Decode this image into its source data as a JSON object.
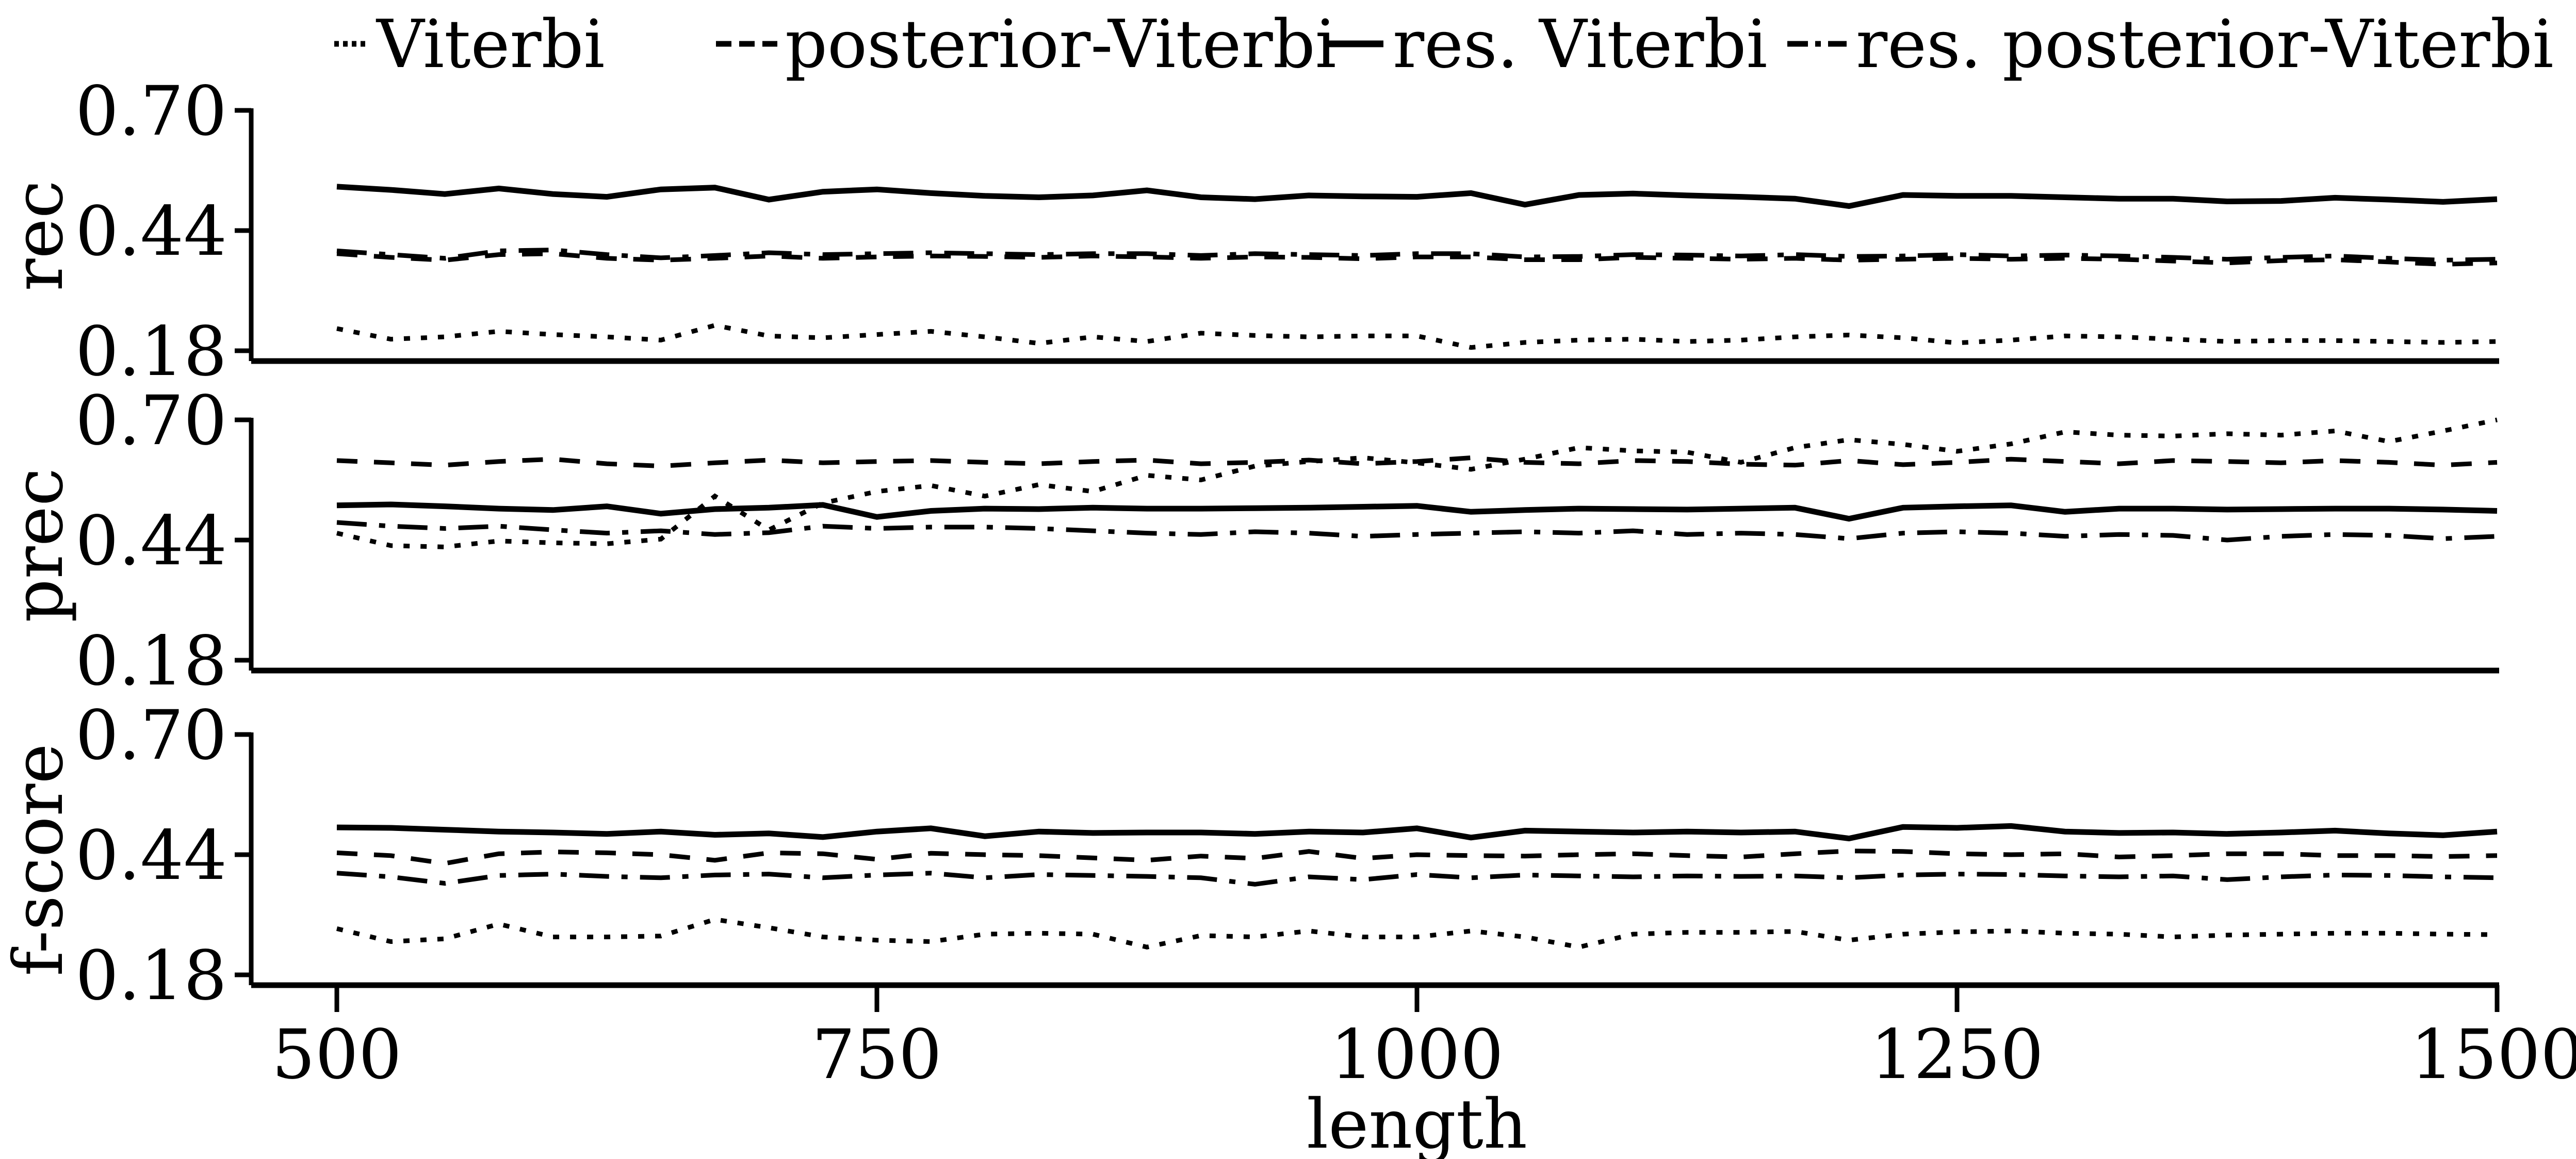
{
  "figure": {
    "background": "#ffffff",
    "ink_color": "#000000"
  },
  "legend": {
    "items": [
      {
        "label": "Viterbi",
        "style": "dotted"
      },
      {
        "label": "posterior-Viterbi",
        "style": "dashed"
      },
      {
        "label": "res. Viterbi",
        "style": "solid"
      },
      {
        "label": "res. posterior-Viterbi",
        "style": "dashdot"
      }
    ]
  },
  "axes": {
    "x_label": "length",
    "x_ticks": [
      "500",
      "750",
      "1000",
      "1250",
      "1500"
    ],
    "x_tick_values": [
      500,
      750,
      1000,
      1250,
      1500
    ],
    "y_tick_labels": [
      "0.70",
      "0.44",
      "0.18"
    ],
    "y_tick_values": [
      0.7,
      0.44,
      0.18
    ],
    "xlim": [
      500,
      1500
    ],
    "ylim": [
      0.18,
      0.7
    ],
    "grid": false,
    "legend_position": "top"
  },
  "chart_data": [
    {
      "type": "line",
      "ylabel": "rec",
      "x": [
        500,
        525,
        550,
        575,
        600,
        625,
        650,
        675,
        700,
        725,
        750,
        775,
        800,
        825,
        850,
        875,
        900,
        925,
        950,
        975,
        1000,
        1025,
        1050,
        1075,
        1100,
        1125,
        1150,
        1175,
        1200,
        1225,
        1250,
        1275,
        1300,
        1325,
        1350,
        1375,
        1400,
        1425,
        1450,
        1475,
        1500
      ],
      "series": [
        {
          "name": "Viterbi",
          "style": "dotted",
          "values": [
            0.228,
            0.205,
            0.21,
            0.222,
            0.215,
            0.21,
            0.203,
            0.235,
            0.212,
            0.208,
            0.215,
            0.222,
            0.21,
            0.196,
            0.21,
            0.2,
            0.218,
            0.213,
            0.21,
            0.212,
            0.212,
            0.187,
            0.198,
            0.203,
            0.205,
            0.2,
            0.203,
            0.21,
            0.214,
            0.208,
            0.197,
            0.203,
            0.212,
            0.21,
            0.205,
            0.2,
            0.202,
            0.202,
            0.2,
            0.198,
            0.2
          ]
        },
        {
          "name": "posterior-Viterbi",
          "style": "dashed",
          "values": [
            0.39,
            0.382,
            0.376,
            0.388,
            0.39,
            0.38,
            0.376,
            0.38,
            0.385,
            0.38,
            0.383,
            0.385,
            0.384,
            0.382,
            0.385,
            0.383,
            0.38,
            0.383,
            0.382,
            0.379,
            0.383,
            0.383,
            0.377,
            0.377,
            0.382,
            0.38,
            0.378,
            0.38,
            0.376,
            0.378,
            0.38,
            0.378,
            0.38,
            0.378,
            0.374,
            0.37,
            0.375,
            0.377,
            0.372,
            0.367,
            0.37
          ]
        },
        {
          "name": "res. Viterbi",
          "style": "solid",
          "values": [
            0.535,
            0.528,
            0.519,
            0.531,
            0.519,
            0.513,
            0.529,
            0.533,
            0.507,
            0.524,
            0.529,
            0.521,
            0.515,
            0.512,
            0.516,
            0.527,
            0.512,
            0.508,
            0.516,
            0.514,
            0.513,
            0.521,
            0.496,
            0.517,
            0.52,
            0.516,
            0.513,
            0.509,
            0.493,
            0.517,
            0.515,
            0.515,
            0.512,
            0.509,
            0.509,
            0.503,
            0.504,
            0.511,
            0.507,
            0.502,
            0.508
          ]
        },
        {
          "name": "res. posterior-Viterbi",
          "style": "dashdot",
          "values": [
            0.396,
            0.388,
            0.38,
            0.396,
            0.398,
            0.388,
            0.381,
            0.386,
            0.392,
            0.388,
            0.39,
            0.392,
            0.39,
            0.388,
            0.39,
            0.39,
            0.386,
            0.39,
            0.388,
            0.386,
            0.39,
            0.39,
            0.383,
            0.384,
            0.388,
            0.387,
            0.385,
            0.388,
            0.384,
            0.385,
            0.388,
            0.385,
            0.387,
            0.385,
            0.382,
            0.378,
            0.382,
            0.385,
            0.38,
            0.376,
            0.378
          ]
        }
      ]
    },
    {
      "type": "line",
      "ylabel": "prec",
      "x": [
        500,
        525,
        550,
        575,
        600,
        625,
        650,
        675,
        700,
        725,
        750,
        775,
        800,
        825,
        850,
        875,
        900,
        925,
        950,
        975,
        1000,
        1025,
        1050,
        1075,
        1100,
        1125,
        1150,
        1175,
        1200,
        1225,
        1250,
        1275,
        1300,
        1325,
        1350,
        1375,
        1400,
        1425,
        1450,
        1475,
        1500
      ],
      "series": [
        {
          "name": "Viterbi",
          "style": "dotted",
          "values": [
            0.455,
            0.428,
            0.425,
            0.438,
            0.434,
            0.432,
            0.442,
            0.535,
            0.462,
            0.52,
            0.545,
            0.558,
            0.535,
            0.56,
            0.545,
            0.58,
            0.57,
            0.6,
            0.61,
            0.618,
            0.607,
            0.593,
            0.615,
            0.64,
            0.633,
            0.63,
            0.608,
            0.64,
            0.657,
            0.647,
            0.632,
            0.648,
            0.674,
            0.667,
            0.665,
            0.67,
            0.667,
            0.676,
            0.653,
            0.676,
            0.7
          ]
        },
        {
          "name": "posterior-Viterbi",
          "style": "dashed",
          "values": [
            0.612,
            0.607,
            0.602,
            0.61,
            0.615,
            0.605,
            0.6,
            0.607,
            0.613,
            0.607,
            0.61,
            0.612,
            0.608,
            0.605,
            0.61,
            0.613,
            0.605,
            0.608,
            0.613,
            0.605,
            0.61,
            0.618,
            0.608,
            0.605,
            0.612,
            0.61,
            0.604,
            0.602,
            0.612,
            0.603,
            0.608,
            0.615,
            0.61,
            0.605,
            0.612,
            0.61,
            0.607,
            0.612,
            0.608,
            0.602,
            0.608
          ]
        },
        {
          "name": "res. Viterbi",
          "style": "solid",
          "values": [
            0.515,
            0.517,
            0.513,
            0.508,
            0.505,
            0.513,
            0.497,
            0.507,
            0.51,
            0.516,
            0.49,
            0.503,
            0.508,
            0.507,
            0.51,
            0.508,
            0.508,
            0.509,
            0.51,
            0.512,
            0.514,
            0.501,
            0.505,
            0.508,
            0.507,
            0.506,
            0.508,
            0.51,
            0.486,
            0.51,
            0.513,
            0.515,
            0.501,
            0.508,
            0.508,
            0.506,
            0.507,
            0.508,
            0.508,
            0.506,
            0.503
          ]
        },
        {
          "name": "res. posterior-Viterbi",
          "style": "dashdot",
          "values": [
            0.478,
            0.47,
            0.465,
            0.47,
            0.462,
            0.455,
            0.46,
            0.452,
            0.456,
            0.47,
            0.465,
            0.468,
            0.468,
            0.465,
            0.46,
            0.455,
            0.452,
            0.458,
            0.455,
            0.448,
            0.452,
            0.455,
            0.458,
            0.455,
            0.46,
            0.452,
            0.455,
            0.452,
            0.443,
            0.455,
            0.458,
            0.455,
            0.448,
            0.452,
            0.45,
            0.44,
            0.448,
            0.452,
            0.45,
            0.443,
            0.448
          ]
        }
      ]
    },
    {
      "type": "line",
      "ylabel": "f-score",
      "x": [
        500,
        525,
        550,
        575,
        600,
        625,
        650,
        675,
        700,
        725,
        750,
        775,
        800,
        825,
        850,
        875,
        900,
        925,
        950,
        975,
        1000,
        1025,
        1050,
        1075,
        1100,
        1125,
        1150,
        1175,
        1200,
        1225,
        1250,
        1275,
        1300,
        1325,
        1350,
        1375,
        1400,
        1425,
        1450,
        1475,
        1500
      ],
      "series": [
        {
          "name": "Viterbi",
          "style": "dotted",
          "values": [
            0.28,
            0.252,
            0.258,
            0.29,
            0.262,
            0.262,
            0.264,
            0.3,
            0.282,
            0.262,
            0.255,
            0.252,
            0.268,
            0.27,
            0.268,
            0.24,
            0.265,
            0.262,
            0.275,
            0.262,
            0.262,
            0.275,
            0.262,
            0.24,
            0.268,
            0.272,
            0.272,
            0.274,
            0.255,
            0.268,
            0.273,
            0.275,
            0.27,
            0.268,
            0.262,
            0.266,
            0.268,
            0.27,
            0.27,
            0.268,
            0.267
          ]
        },
        {
          "name": "posterior-Viterbi",
          "style": "dashed",
          "values": [
            0.444,
            0.438,
            0.421,
            0.442,
            0.446,
            0.444,
            0.44,
            0.428,
            0.444,
            0.442,
            0.43,
            0.443,
            0.44,
            0.438,
            0.433,
            0.428,
            0.437,
            0.432,
            0.447,
            0.432,
            0.44,
            0.438,
            0.437,
            0.44,
            0.442,
            0.438,
            0.435,
            0.442,
            0.448,
            0.447,
            0.442,
            0.44,
            0.442,
            0.435,
            0.438,
            0.442,
            0.442,
            0.438,
            0.438,
            0.436,
            0.438
          ]
        },
        {
          "name": "res. Viterbi",
          "style": "solid",
          "values": [
            0.499,
            0.498,
            0.494,
            0.49,
            0.488,
            0.485,
            0.49,
            0.483,
            0.486,
            0.478,
            0.49,
            0.497,
            0.48,
            0.49,
            0.487,
            0.488,
            0.488,
            0.485,
            0.49,
            0.488,
            0.497,
            0.477,
            0.492,
            0.49,
            0.488,
            0.49,
            0.488,
            0.49,
            0.475,
            0.5,
            0.498,
            0.502,
            0.49,
            0.487,
            0.488,
            0.485,
            0.488,
            0.492,
            0.486,
            0.482,
            0.49
          ]
        },
        {
          "name": "res. posterior-Viterbi",
          "style": "dashdot",
          "values": [
            0.4,
            0.392,
            0.378,
            0.395,
            0.398,
            0.393,
            0.39,
            0.396,
            0.398,
            0.39,
            0.396,
            0.4,
            0.39,
            0.397,
            0.395,
            0.393,
            0.39,
            0.376,
            0.392,
            0.386,
            0.397,
            0.39,
            0.396,
            0.394,
            0.392,
            0.394,
            0.393,
            0.394,
            0.39,
            0.396,
            0.398,
            0.397,
            0.394,
            0.392,
            0.394,
            0.386,
            0.392,
            0.396,
            0.395,
            0.392,
            0.39
          ]
        }
      ]
    }
  ]
}
